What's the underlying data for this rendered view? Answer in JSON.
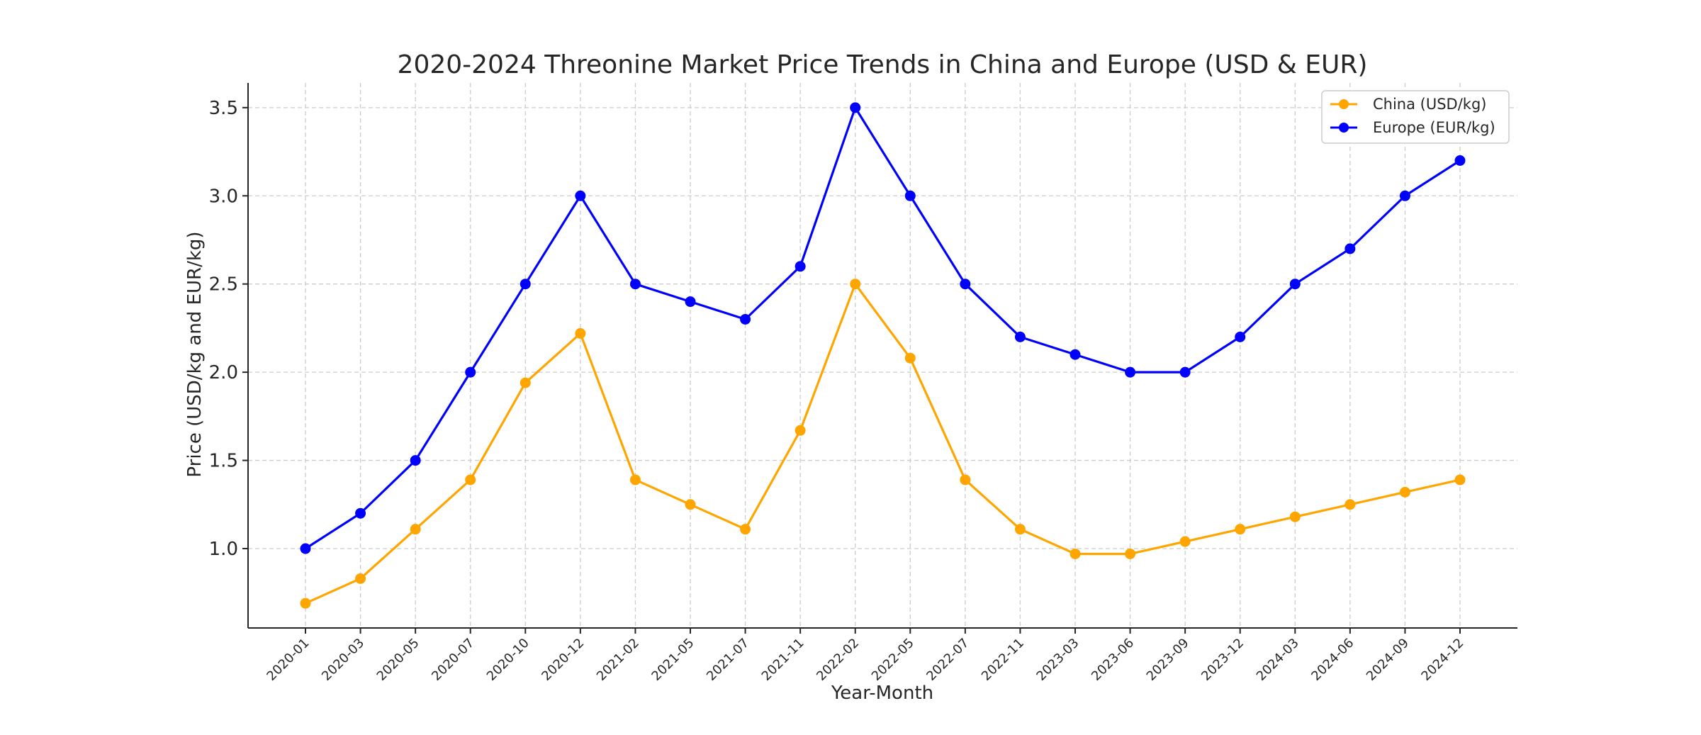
{
  "chart_data": {
    "type": "line",
    "title": "2020-2024 Threonine Market Price Trends in China and Europe (USD & EUR)",
    "xlabel": "Year-Month",
    "ylabel": "Price (USD/kg and EUR/kg)",
    "ylim": [
      0.55,
      3.64
    ],
    "yticks": [
      1.0,
      1.5,
      2.0,
      2.5,
      3.0,
      3.5
    ],
    "ytick_labels": [
      "1.0",
      "1.5",
      "2.0",
      "2.5",
      "3.0",
      "3.5"
    ],
    "grid": true,
    "legend_position": "top-right",
    "categories": [
      "2020-01",
      "2020-03",
      "2020-05",
      "2020-07",
      "2020-10",
      "2020-12",
      "2021-02",
      "2021-05",
      "2021-07",
      "2021-11",
      "2022-02",
      "2022-05",
      "2022-07",
      "2022-11",
      "2023-03",
      "2023-06",
      "2023-09",
      "2023-12",
      "2024-03",
      "2024-06",
      "2024-09",
      "2024-12"
    ],
    "series": [
      {
        "name": "China (USD/kg)",
        "color": "#FFA500",
        "values": [
          0.69,
          0.83,
          1.11,
          1.39,
          1.94,
          2.22,
          1.39,
          1.25,
          1.11,
          1.67,
          2.5,
          2.08,
          1.39,
          1.11,
          0.97,
          0.97,
          1.04,
          1.11,
          1.18,
          1.25,
          1.32,
          1.39
        ]
      },
      {
        "name": "Europe (EUR/kg)",
        "color": "#0000FF",
        "values": [
          1.0,
          1.2,
          1.5,
          2.0,
          2.5,
          3.0,
          2.5,
          2.4,
          2.3,
          2.6,
          3.5,
          3.0,
          2.5,
          2.2,
          2.1,
          2.0,
          2.0,
          2.2,
          2.5,
          2.7,
          3.0,
          3.2
        ]
      }
    ]
  }
}
